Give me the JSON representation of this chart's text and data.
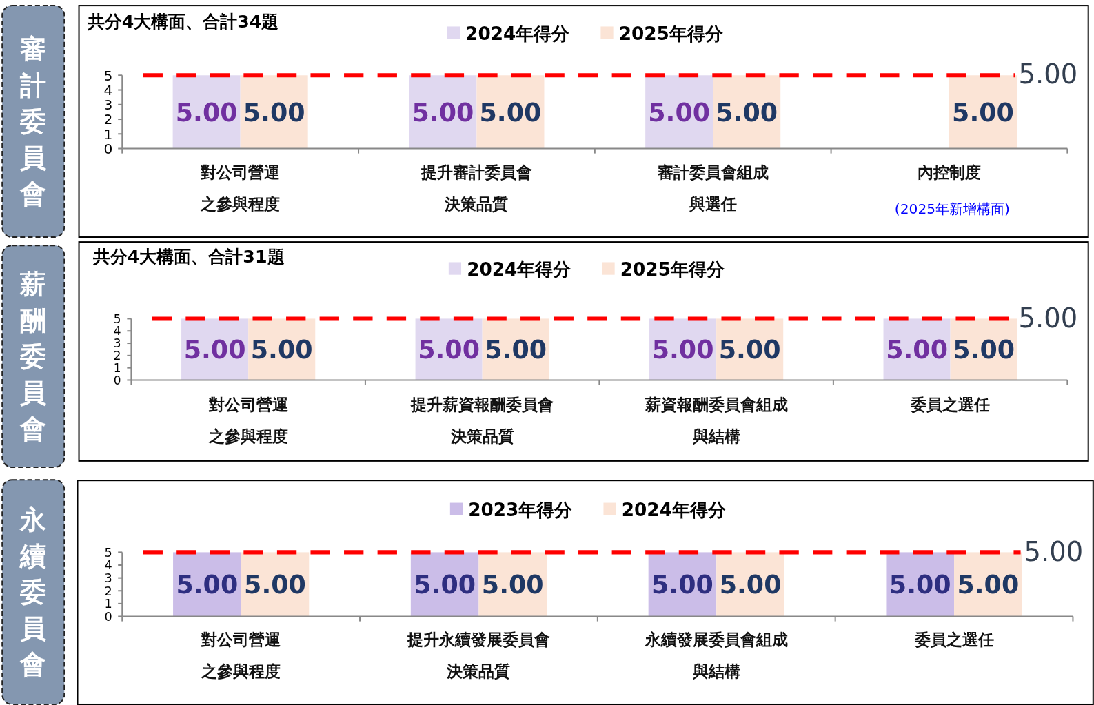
{
  "chart_data": [
    {
      "type": "bar",
      "title": "審計委員會",
      "subtitle": "共分4大構面、合計34題",
      "categories": [
        "對公司營運之參與程度",
        "提升審計委員會決策品質",
        "審計委員會組成與選任",
        "內控制度"
      ],
      "series": [
        {
          "name": "2024年得分",
          "color": "#e0d8f0",
          "values": [
            5,
            5,
            5,
            null
          ],
          "value_labels": [
            "5.00",
            "5.00",
            "5.00",
            null
          ]
        },
        {
          "name": "2025年得分",
          "color": "#fbe4d6",
          "values": [
            5,
            5,
            5,
            5
          ],
          "value_labels": [
            "5.00",
            "5.00",
            "5.00",
            "5.00"
          ]
        }
      ],
      "ylim": [
        0,
        5
      ],
      "yticks": [
        0,
        1,
        2,
        3,
        4,
        5
      ],
      "legend": "top",
      "ref_lines": [
        {
          "axis": "y",
          "value": 5,
          "label": "5.00",
          "color": "#ff0000",
          "line_style": "dashed"
        }
      ],
      "annotations": [
        "(2025年新增構面)"
      ]
    },
    {
      "type": "bar",
      "title": "薪酬委員會",
      "subtitle": "共分4大構面、合計31題",
      "categories": [
        "對公司營運之參與程度",
        "提升薪資報酬委員會決策品質",
        "薪資報酬委員會組成與結構",
        "委員之選任"
      ],
      "series": [
        {
          "name": "2024年得分",
          "color": "#e0d8f0",
          "values": [
            5,
            5,
            5,
            5
          ],
          "value_labels": [
            "5.00",
            "5.00",
            "5.00",
            "5.00"
          ]
        },
        {
          "name": "2025年得分",
          "color": "#fbe4d6",
          "values": [
            5,
            5,
            5,
            5
          ],
          "value_labels": [
            "5.00",
            "5.00",
            "5.00",
            "5.00"
          ]
        }
      ],
      "ylim": [
        0,
        5
      ],
      "yticks": [
        0,
        1,
        2,
        3,
        4,
        5
      ],
      "legend": "top",
      "ref_lines": [
        {
          "axis": "y",
          "value": 5,
          "label": "5.00",
          "color": "#ff0000",
          "line_style": "dashed"
        }
      ]
    },
    {
      "type": "bar",
      "title": "永續委員會",
      "categories": [
        "對公司營運之參與程度",
        "提升永續發展委員會決策品質",
        "永續發展委員會組成與結構",
        "委員之選任"
      ],
      "series": [
        {
          "name": "2023年得分",
          "color": "#cbbde8",
          "values": [
            5,
            5,
            5,
            5
          ],
          "value_labels": [
            "5.00",
            "5.00",
            "5.00",
            "5.00"
          ]
        },
        {
          "name": "2024年得分",
          "color": "#fbe4d6",
          "values": [
            5,
            5,
            5,
            5
          ],
          "value_labels": [
            "5.00",
            "5.00",
            "5.00",
            "5.00"
          ]
        }
      ],
      "ylim": [
        0,
        5
      ],
      "yticks": [
        0,
        1,
        2,
        3,
        4,
        5
      ],
      "legend": "top",
      "ref_lines": [
        {
          "axis": "y",
          "value": 5,
          "label": "5.00",
          "color": "#ff0000",
          "line_style": "dashed"
        }
      ]
    }
  ]
}
